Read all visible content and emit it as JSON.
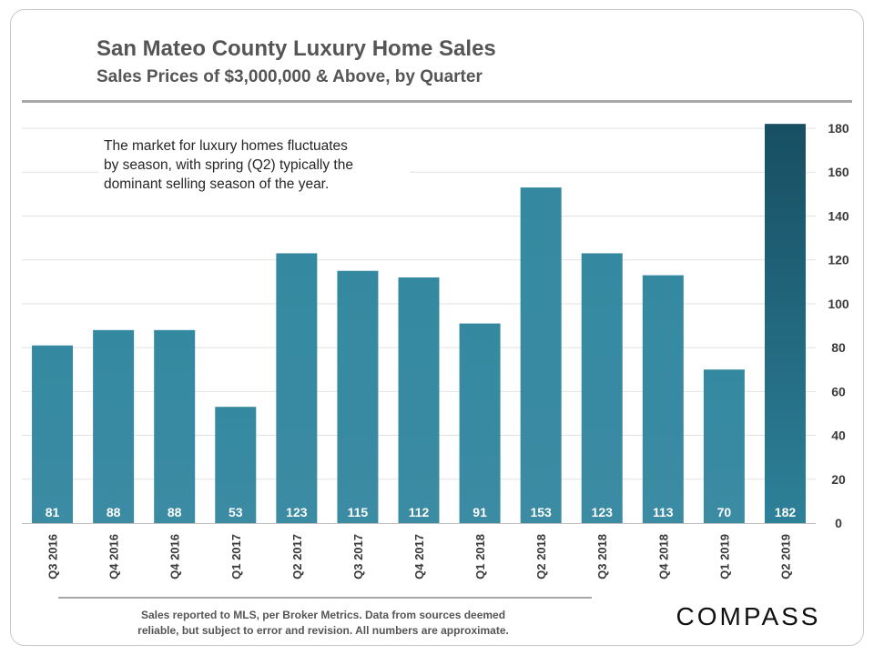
{
  "header": {
    "title": "San Mateo County Luxury Home Sales",
    "subtitle": "Sales Prices of $3,000,000 & Above, by Quarter"
  },
  "annotation": {
    "lines": [
      "The market for luxury homes fluctuates",
      "by season, with spring (Q2) typically the",
      "dominant selling season of the year."
    ]
  },
  "footnote": {
    "lines": [
      "Sales reported to MLS, per Broker Metrics. Data from sources  deemed",
      "reliable, but subject to error and revision. All numbers are approximate."
    ]
  },
  "brand": {
    "logo_text": "COMPASS"
  },
  "colors": {
    "bar_top": "#3489a0",
    "bar_bottom": "#3b8ba3",
    "highlight_top": "#174e62",
    "highlight_bottom": "#2d8199",
    "value_label": "#ffffff",
    "axis_text": "#3a3a3a",
    "gridline": "#e2e2e2"
  },
  "chart_data": {
    "type": "bar",
    "categories": [
      "Q3 2016",
      "Q4 2016",
      "Q4 2016",
      "Q1 2017",
      "Q2 2017",
      "Q3 2017",
      "Q4 2017",
      "Q1 2018",
      "Q2 2018",
      "Q3 2018",
      "Q4 2018",
      "Q1 2019",
      "Q2 2019"
    ],
    "values": [
      81,
      88,
      88,
      53,
      123,
      115,
      112,
      91,
      153,
      123,
      113,
      70,
      182
    ],
    "highlight_index": 12,
    "data_labels": true,
    "ylim": [
      0,
      180
    ],
    "yticks": [
      0,
      20,
      40,
      60,
      80,
      100,
      120,
      140,
      160,
      180
    ],
    "yaxis_side": "right",
    "grid": true,
    "xlabel": "",
    "ylabel": ""
  }
}
